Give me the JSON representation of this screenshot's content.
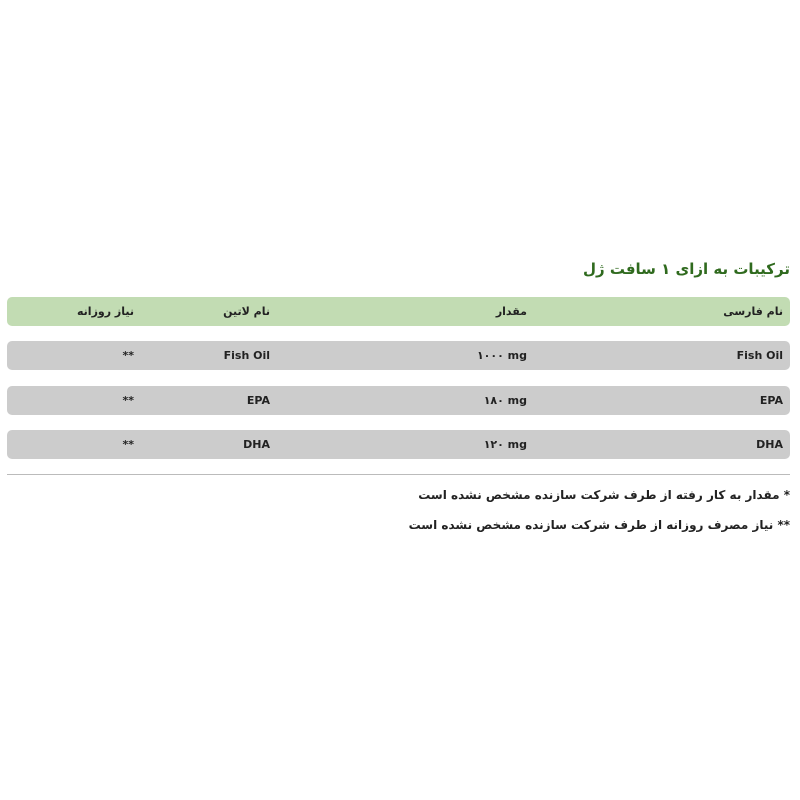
{
  "title": "ترکیبات به ازای ۱ سافت ژل",
  "table": {
    "headers": [
      "نام فارسی",
      "نام لاتین",
      "مقدار",
      "نیاز روزانه"
    ],
    "rows": [
      [
        "Fish Oil",
        "Fish Oil",
        "۱۰۰۰ mg",
        "**"
      ],
      [
        "EPA",
        "EPA",
        "۱۸۰ mg",
        "**"
      ],
      [
        "DHA",
        "DHA",
        "۱۲۰ mg",
        "**"
      ]
    ]
  },
  "notes": [
    "* مقدار به کار رفته از طرف شرکت سازنده مشخص نشده است",
    "** نیاز مصرف روزانه از طرف شرکت سازنده مشخص نشده است"
  ],
  "colors": {
    "title": "#2f6a1e",
    "header_bg": "#c2dcb3",
    "row_bg": "#cccccc"
  }
}
